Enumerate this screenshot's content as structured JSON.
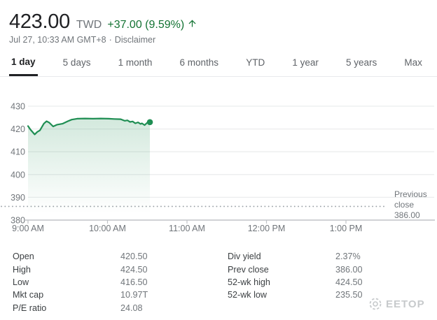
{
  "header": {
    "price": "423.00",
    "currency": "TWD",
    "change": "+37.00 (9.59%)",
    "timestamp": "Jul 27, 10:33 AM GMT+8",
    "separator": "·",
    "disclaimer_label": "Disclaimer"
  },
  "tabs": [
    {
      "label": "1 day",
      "active": true
    },
    {
      "label": "5 days",
      "active": false
    },
    {
      "label": "1 month",
      "active": false
    },
    {
      "label": "6 months",
      "active": false
    },
    {
      "label": "YTD",
      "active": false
    },
    {
      "label": "1 year",
      "active": false
    },
    {
      "label": "5 years",
      "active": false
    },
    {
      "label": "Max",
      "active": false
    }
  ],
  "chart_data": {
    "type": "area",
    "title": "",
    "x_unit": "minutes after 9:00 AM GMT+8",
    "points": [
      [
        0,
        421.3
      ],
      [
        2,
        419.6
      ],
      [
        5,
        417.6
      ],
      [
        7,
        418.7
      ],
      [
        9,
        419.4
      ],
      [
        12,
        422.4
      ],
      [
        14,
        423.4
      ],
      [
        16,
        422.8
      ],
      [
        19,
        421.1
      ],
      [
        22,
        421.9
      ],
      [
        26,
        422.3
      ],
      [
        30,
        423.4
      ],
      [
        33,
        424.1
      ],
      [
        37,
        424.5
      ],
      [
        43,
        424.6
      ],
      [
        49,
        424.5
      ],
      [
        55,
        424.6
      ],
      [
        61,
        424.5
      ],
      [
        65,
        424.4
      ],
      [
        70,
        424.3
      ],
      [
        73,
        423.6
      ],
      [
        75,
        423.8
      ],
      [
        77,
        423.1
      ],
      [
        79,
        423.3
      ],
      [
        81,
        422.5
      ],
      [
        83,
        422.9
      ],
      [
        85,
        422.2
      ],
      [
        86,
        422.5
      ],
      [
        88,
        421.7
      ],
      [
        90,
        422.8
      ],
      [
        91,
        423.2
      ],
      [
        92,
        423.0
      ]
    ],
    "last_price": 423.0,
    "yticks": [
      430,
      420,
      410,
      400,
      390,
      380
    ],
    "ylim": [
      380,
      434
    ],
    "xticks": [
      {
        "label": "9:00 AM",
        "m": 0
      },
      {
        "label": "10:00 AM",
        "m": 60
      },
      {
        "label": "11:00 AM",
        "m": 120
      },
      {
        "label": "12:00 PM",
        "m": 180
      },
      {
        "label": "1:00 PM",
        "m": 240
      }
    ],
    "xlim_minutes": [
      0,
      307
    ],
    "grid": "on",
    "legend": "none",
    "previous_close": {
      "value": 386.0,
      "label_lines": [
        "Previous",
        "close",
        "386.00"
      ]
    }
  },
  "stats": {
    "left": [
      {
        "label": "Open",
        "value": "420.50"
      },
      {
        "label": "High",
        "value": "424.50"
      },
      {
        "label": "Low",
        "value": "416.50"
      },
      {
        "label": "Mkt cap",
        "value": "10.97T"
      },
      {
        "label": "P/E ratio",
        "value": "24.08"
      }
    ],
    "right": [
      {
        "label": "Div yield",
        "value": "2.37%"
      },
      {
        "label": "Prev close",
        "value": "386.00"
      },
      {
        "label": "52-wk high",
        "value": "424.50"
      },
      {
        "label": "52-wk low",
        "value": "235.50"
      }
    ]
  },
  "watermark": {
    "text": "EETOP"
  },
  "colors": {
    "price_text": "#202124",
    "secondary_text": "#70757a",
    "positive_green": "#137333",
    "chart_line_green": "#1f8e53",
    "chart_fill_top": "rgba(31,142,83,0.20)",
    "chart_fill_bottom": "rgba(31,142,83,0)",
    "grid_line": "#ebedee",
    "axis_line": "#c0c3c7",
    "dotted_line": "#9aa0a6",
    "tab_inactive": "#5f6368",
    "tab_active": "#202124"
  }
}
